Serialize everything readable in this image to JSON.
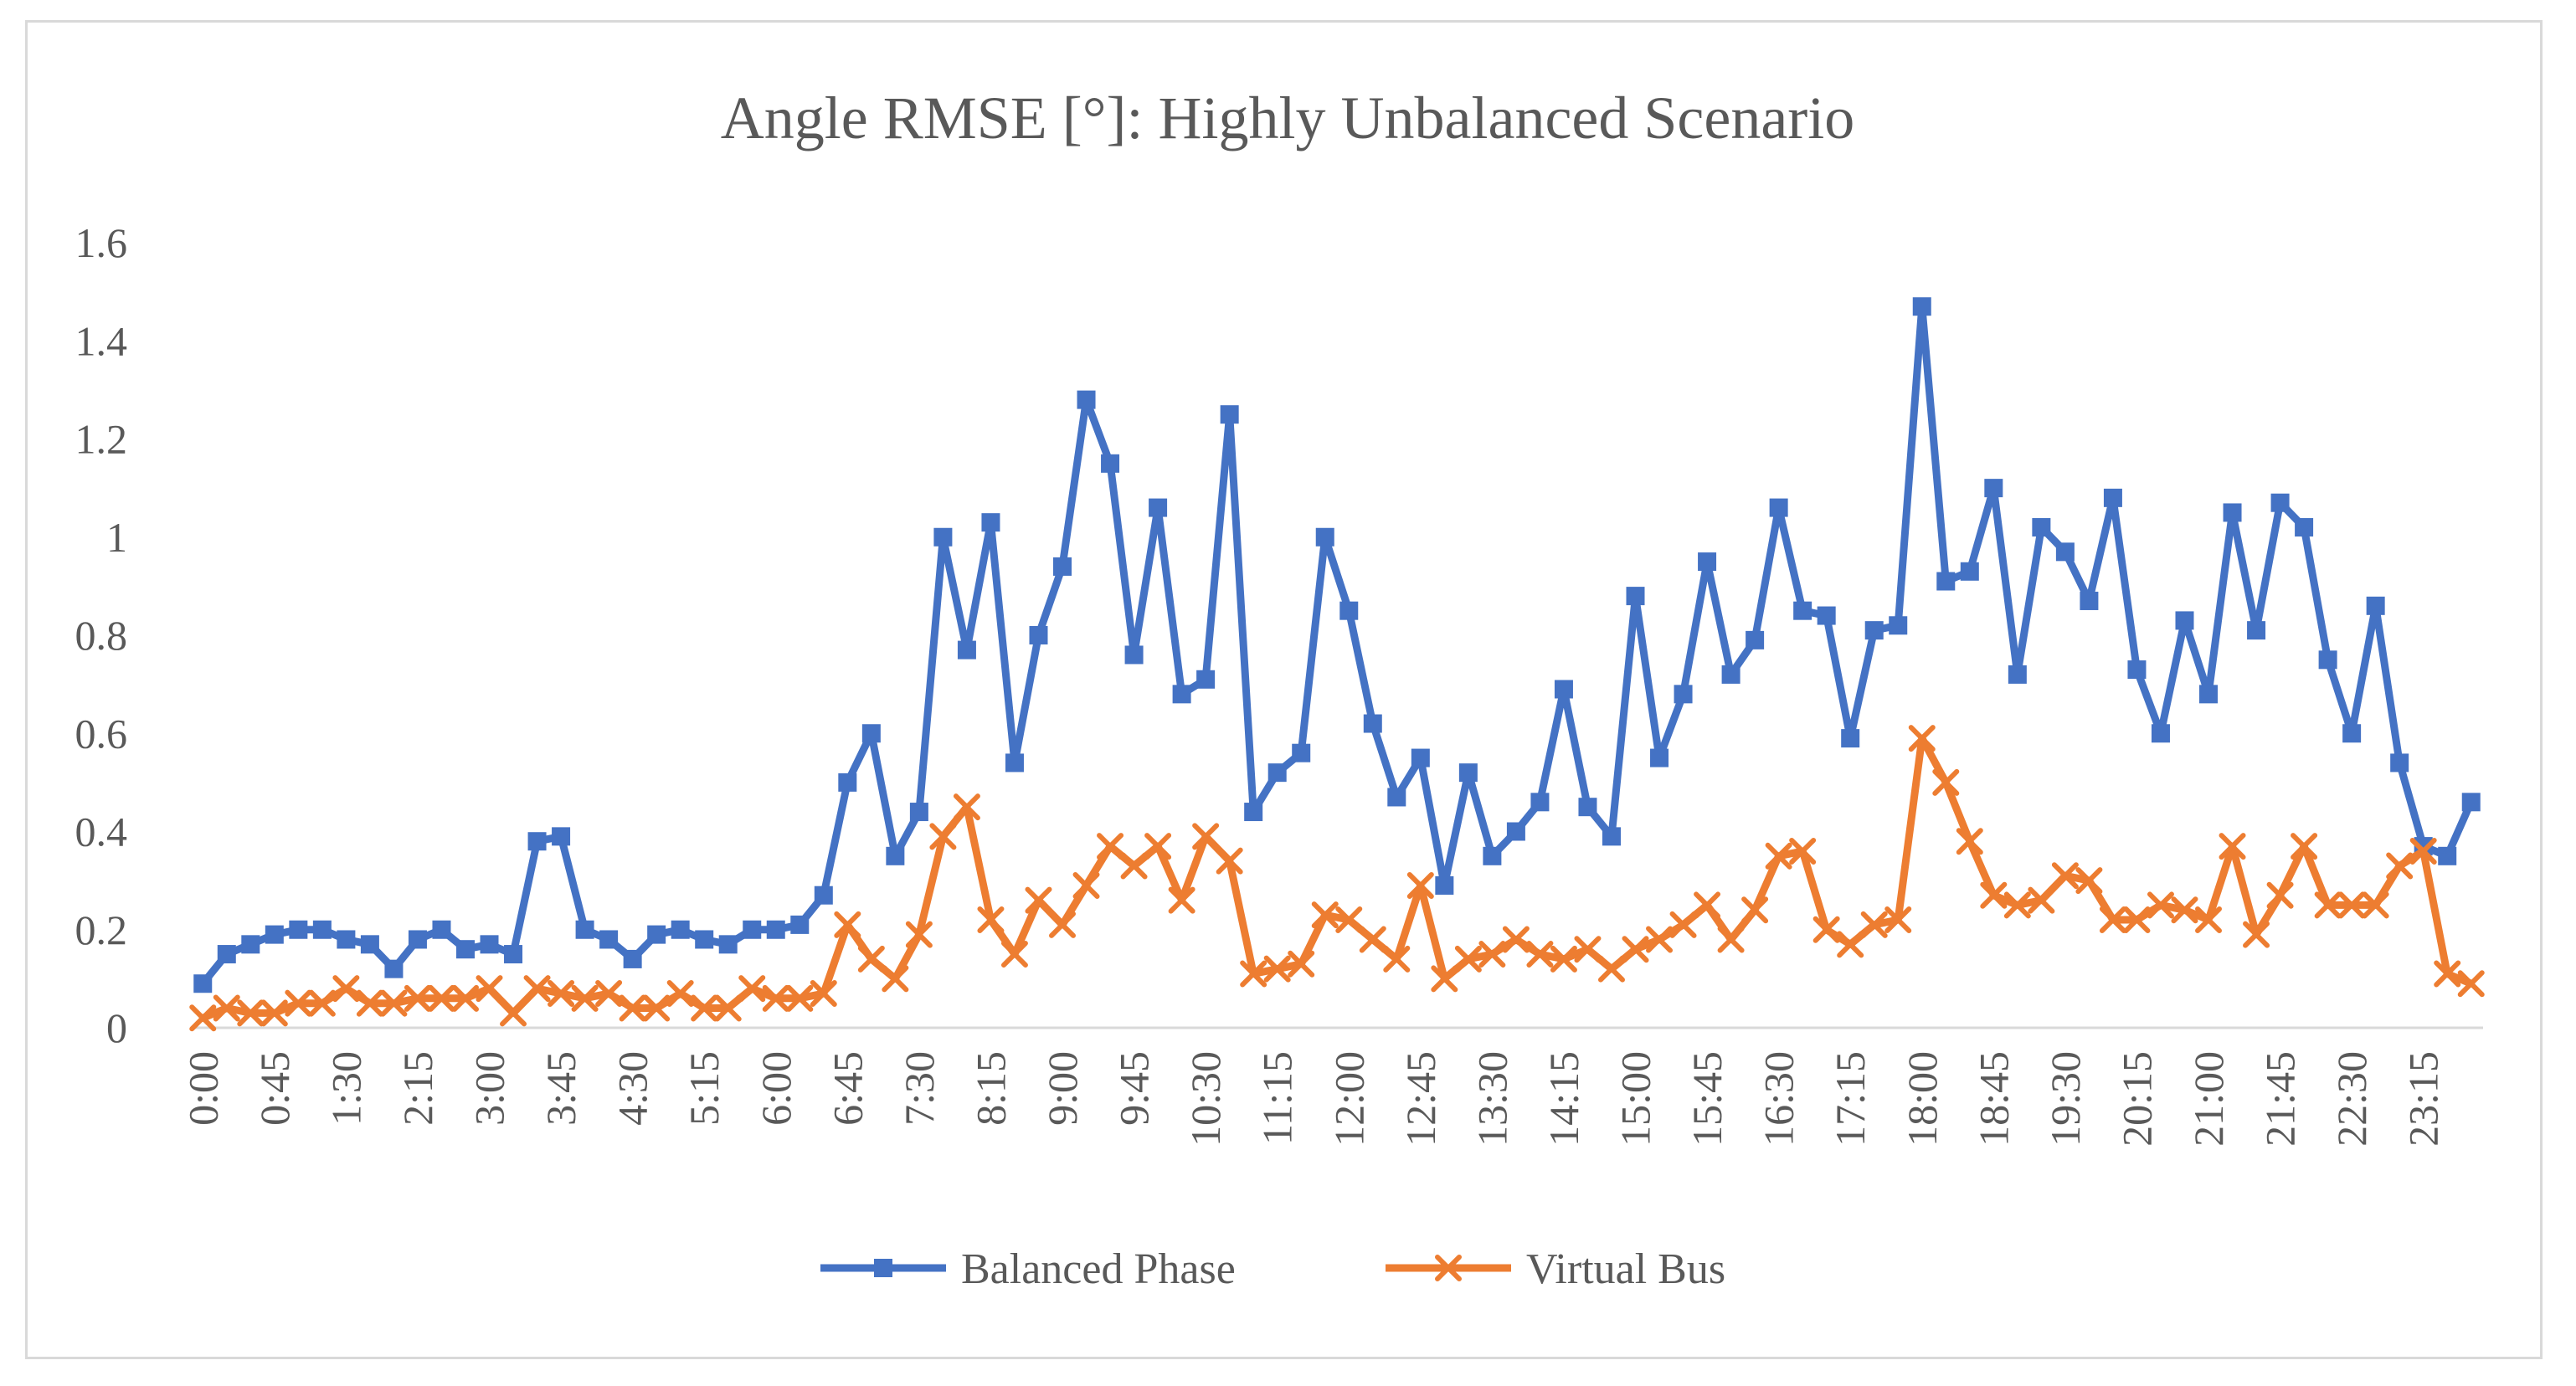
{
  "chart_data": {
    "type": "line",
    "title": "Angle RMSE [°]: Highly Unbalanced Scenario",
    "xlabel": "",
    "ylabel": "",
    "ylim": [
      0,
      1.6
    ],
    "y_ticks": [
      "0",
      "0.2",
      "0.4",
      "0.6",
      "0.8",
      "1",
      "1.2",
      "1.4",
      "1.6"
    ],
    "x_tick_labels": [
      "0:00",
      "0:45",
      "1:30",
      "2:15",
      "3:00",
      "3:45",
      "4:30",
      "5:15",
      "6:00",
      "6:45",
      "7:30",
      "8:15",
      "9:00",
      "9:45",
      "10:30",
      "11:15",
      "12:00",
      "12:45",
      "13:30",
      "14:15",
      "15:00",
      "15:45",
      "16:30",
      "17:15",
      "18:00",
      "18:45",
      "19:30",
      "20:15",
      "21:00",
      "21:45",
      "22:30",
      "23:15"
    ],
    "x_tick_every": 3,
    "n_points": 96,
    "series": [
      {
        "name": "Balanced Phase",
        "color": "#4472c4",
        "marker": "square",
        "values": [
          0.09,
          0.15,
          0.17,
          0.19,
          0.2,
          0.2,
          0.18,
          0.17,
          0.12,
          0.18,
          0.2,
          0.16,
          0.17,
          0.15,
          0.38,
          0.39,
          0.2,
          0.18,
          0.14,
          0.19,
          0.2,
          0.18,
          0.17,
          0.2,
          0.2,
          0.21,
          0.27,
          0.5,
          0.6,
          0.35,
          0.44,
          1.0,
          0.77,
          1.03,
          0.54,
          0.8,
          0.94,
          1.28,
          1.15,
          0.76,
          1.06,
          0.68,
          0.71,
          1.25,
          0.44,
          0.52,
          0.56,
          1.0,
          0.85,
          0.62,
          0.47,
          0.55,
          0.29,
          0.52,
          0.35,
          0.4,
          0.46,
          0.69,
          0.45,
          0.39,
          0.88,
          0.55,
          0.68,
          0.95,
          0.72,
          0.79,
          1.06,
          0.85,
          0.84,
          0.59,
          0.81,
          0.82,
          1.47,
          0.91,
          0.93,
          1.1,
          0.72,
          1.02,
          0.97,
          0.87,
          1.08,
          0.73,
          0.6,
          0.83,
          0.68,
          1.05,
          0.81,
          1.07,
          1.02,
          0.75,
          0.6,
          0.86,
          0.54,
          0.37,
          0.35,
          0.46
        ]
      },
      {
        "name": "Virtual Bus",
        "color": "#ed7d31",
        "marker": "x",
        "values": [
          0.02,
          0.04,
          0.03,
          0.03,
          0.05,
          0.05,
          0.08,
          0.05,
          0.05,
          0.06,
          0.06,
          0.06,
          0.08,
          0.03,
          0.08,
          0.07,
          0.06,
          0.07,
          0.04,
          0.04,
          0.07,
          0.04,
          0.04,
          0.08,
          0.06,
          0.06,
          0.07,
          0.21,
          0.14,
          0.1,
          0.19,
          0.39,
          0.45,
          0.22,
          0.15,
          0.26,
          0.21,
          0.29,
          0.37,
          0.33,
          0.37,
          0.26,
          0.39,
          0.34,
          0.11,
          0.12,
          0.13,
          0.23,
          0.22,
          0.18,
          0.14,
          0.29,
          0.1,
          0.14,
          0.15,
          0.18,
          0.15,
          0.14,
          0.16,
          0.12,
          0.16,
          0.18,
          0.21,
          0.25,
          0.18,
          0.24,
          0.35,
          0.36,
          0.2,
          0.17,
          0.21,
          0.22,
          0.59,
          0.5,
          0.38,
          0.27,
          0.25,
          0.26,
          0.31,
          0.3,
          0.22,
          0.22,
          0.25,
          0.24,
          0.22,
          0.37,
          0.19,
          0.27,
          0.37,
          0.25,
          0.25,
          0.25,
          0.33,
          0.36,
          0.11,
          0.09
        ]
      }
    ],
    "legend": "bottom-center"
  }
}
